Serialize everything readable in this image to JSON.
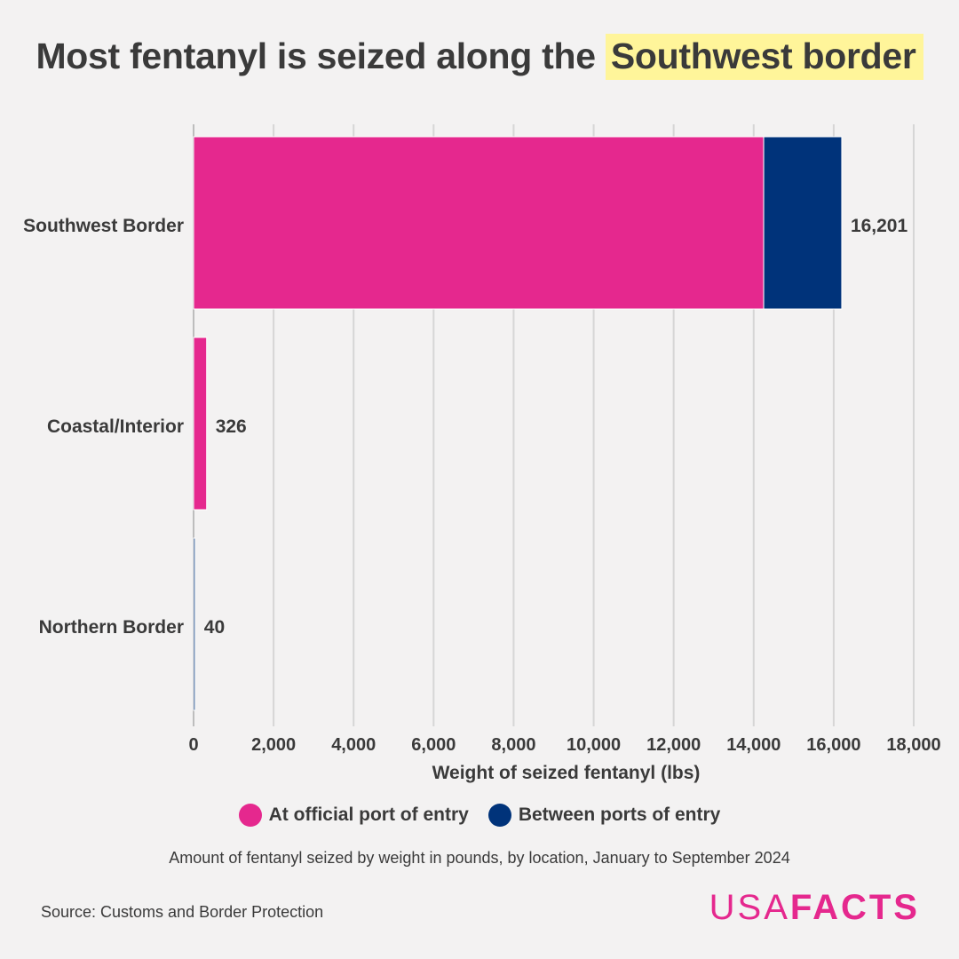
{
  "header": {
    "title_prefix": "Most fentanyl is seized along the",
    "title_highlight": "Southwest border"
  },
  "chart_data": {
    "type": "bar",
    "orientation": "horizontal",
    "stacked": true,
    "categories": [
      "Southwest Border",
      "Coastal/Interior",
      "Northern Border"
    ],
    "series": [
      {
        "name": "At official port of entry",
        "color": "#e5288e",
        "values": [
          14250,
          326,
          0
        ]
      },
      {
        "name": "Between ports of entry",
        "color": "#00337a",
        "values": [
          1951,
          0,
          40
        ]
      }
    ],
    "totals": [
      16201,
      326,
      40
    ],
    "total_labels": [
      "16,201",
      "326",
      "40"
    ],
    "xlabel": "Weight of seized fentanyl (lbs)",
    "ylabel": "",
    "xlim": [
      0,
      18000
    ],
    "xticks": [
      0,
      2000,
      4000,
      6000,
      8000,
      10000,
      12000,
      14000,
      16000,
      18000
    ],
    "xtick_labels": [
      "0",
      "2,000",
      "4,000",
      "6,000",
      "8,000",
      "10,000",
      "12,000",
      "14,000",
      "16,000",
      "18,000"
    ],
    "grid": "vertical",
    "legend_placement": "bottom"
  },
  "legend": {
    "items": [
      {
        "label": "At official port of entry",
        "color": "#e5288e"
      },
      {
        "label": "Between ports of entry",
        "color": "#00337a"
      }
    ]
  },
  "footer": {
    "subtitle": "Amount of fentanyl seized by weight in pounds, by location, January to September 2024",
    "source": "Source: Customs and Border Protection",
    "logo_part1": "USA",
    "logo_part2": "FACTS"
  }
}
